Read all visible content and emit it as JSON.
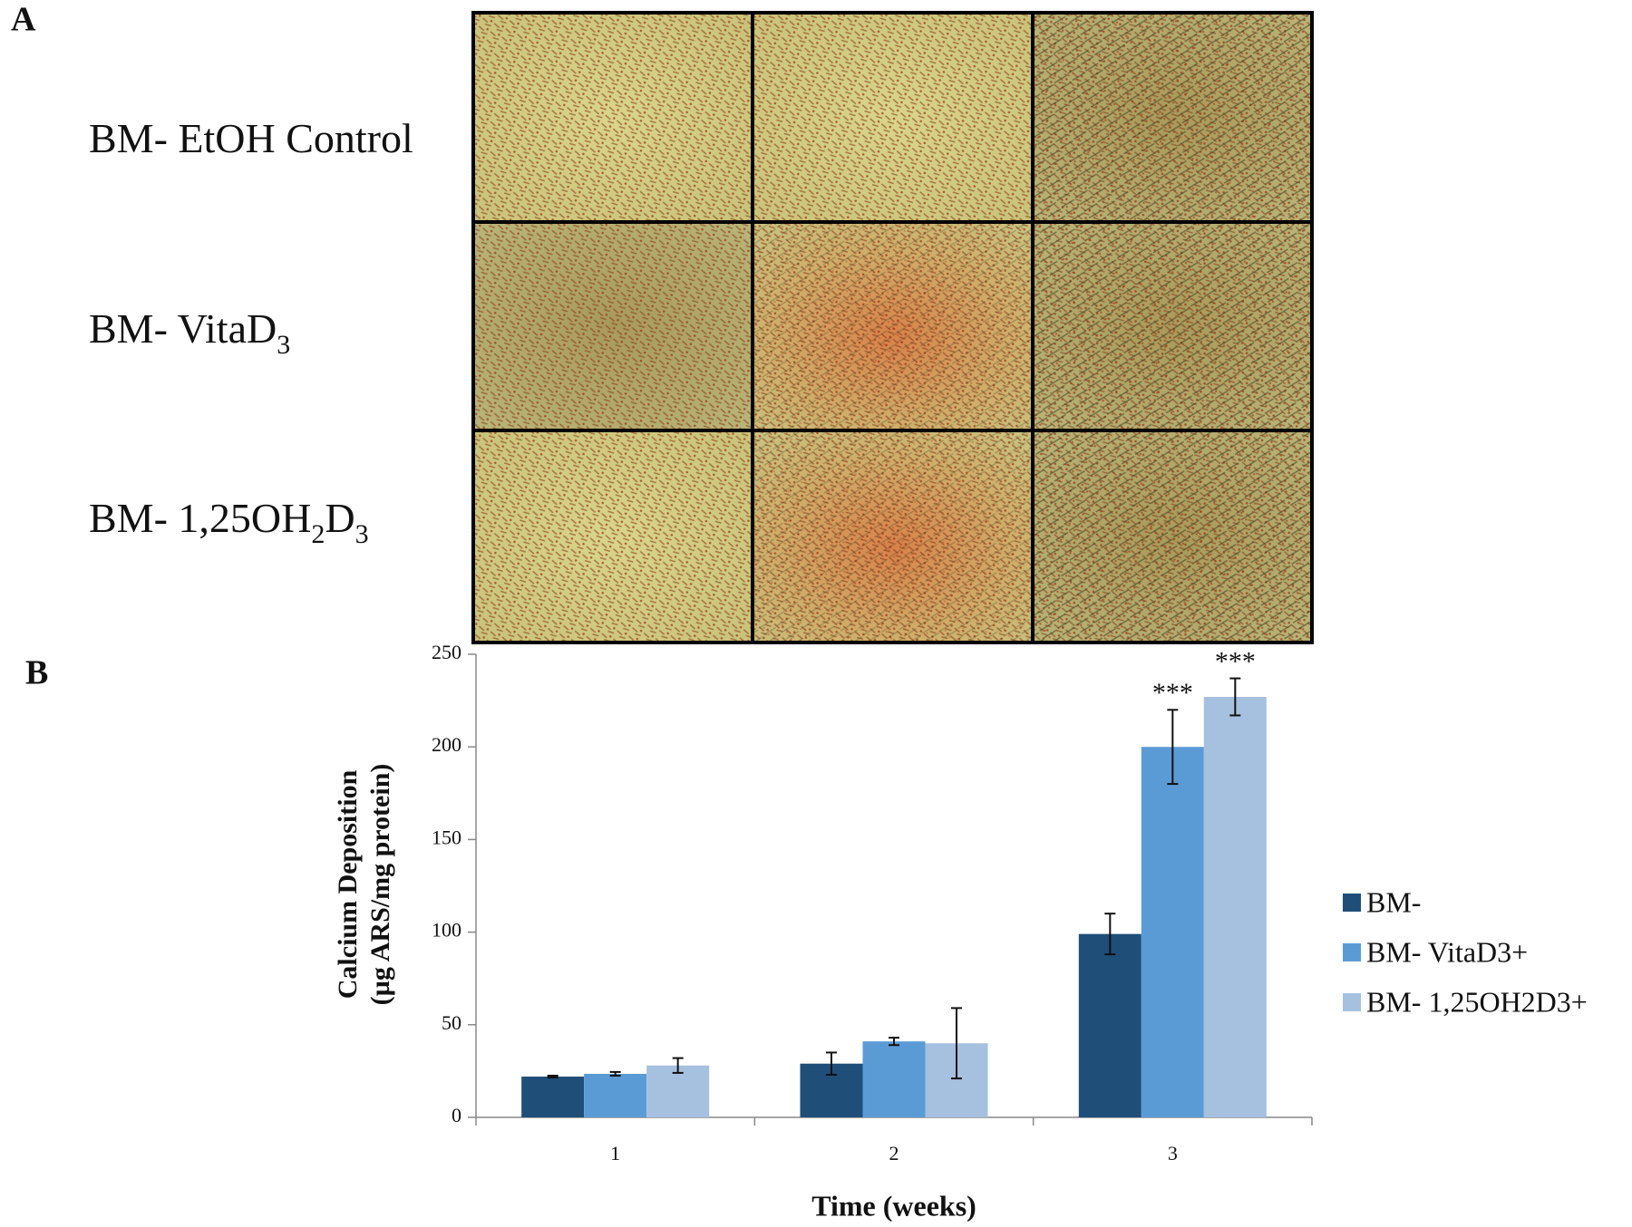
{
  "panel_a": {
    "label": "A",
    "rows": [
      {
        "parts": [
          "BM- EtOH Control"
        ]
      },
      {
        "parts": [
          "BM- VitaD",
          "3"
        ]
      },
      {
        "parts": [
          "BM- 1,25OH",
          "2",
          "D",
          "3"
        ]
      }
    ]
  },
  "panel_b": {
    "label": "B"
  },
  "chart_data": {
    "type": "bar",
    "ylabel": [
      "Calcium Deposition",
      "(µg ARS/mg protein)"
    ],
    "xlabel": "Time (weeks)",
    "categories": [
      "1",
      "2",
      "3"
    ],
    "series": [
      {
        "name": "BM-",
        "color": "#1f4e79",
        "values": [
          22,
          29,
          99
        ],
        "errors": [
          0.5,
          6,
          11
        ]
      },
      {
        "name": "BM- VitaD3+",
        "color": "#5b9bd5",
        "values": [
          23.5,
          41,
          200
        ],
        "errors": [
          1,
          2,
          20
        ],
        "significance": [
          null,
          null,
          "***"
        ]
      },
      {
        "name": "BM- 1,25OH2D3+",
        "color": "#a6c0e0",
        "values": [
          28,
          40,
          227
        ],
        "errors": [
          4,
          19,
          10
        ],
        "significance": [
          null,
          null,
          "***"
        ]
      }
    ],
    "ylim": [
      0,
      250
    ],
    "yticks": [
      0,
      50,
      100,
      150,
      200,
      250
    ],
    "legend": "right"
  }
}
